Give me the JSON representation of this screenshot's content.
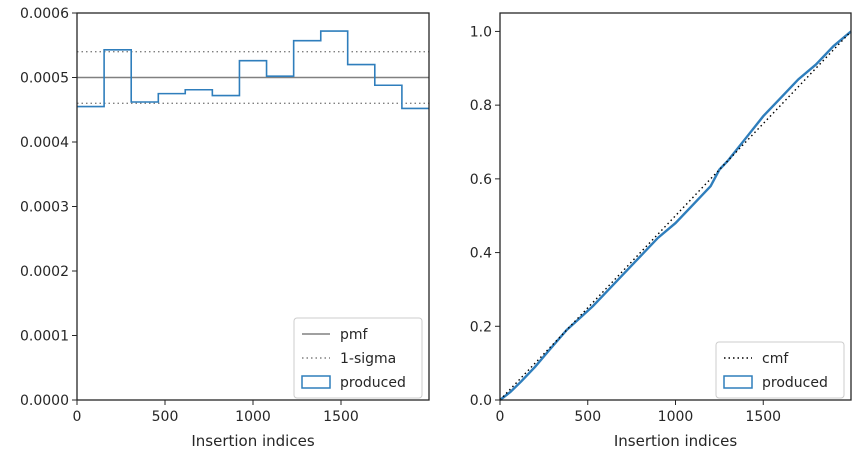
{
  "colors": {
    "histogram": "#2f7ebc",
    "pmf_line": "#808080",
    "sigma_line": "#808080",
    "cmf_line": "#000000",
    "axis": "#262626"
  },
  "chart_data": [
    {
      "type": "line",
      "xlabel": "Insertion indices",
      "xlim": [
        0,
        2000
      ],
      "ylim": [
        0,
        0.0006
      ],
      "x_ticks": [
        0,
        500,
        1000,
        1500
      ],
      "x_tick_labels": [
        "0",
        "500",
        "1000",
        "1500"
      ],
      "y_ticks": [
        0,
        0.0001,
        0.0002,
        0.0003,
        0.0004,
        0.0005,
        0.0006
      ],
      "y_tick_labels": [
        "0.0000",
        "0.0001",
        "0.0002",
        "0.0003",
        "0.0004",
        "0.0005",
        "0.0006"
      ],
      "legend_position": "lower-right",
      "reference_lines": [
        {
          "name": "pmf",
          "y": 0.0005,
          "style": "solid"
        },
        {
          "name": "1-sigma",
          "y": 0.00054,
          "style": "dotted"
        },
        {
          "name": "1-sigma",
          "y": 0.00046,
          "style": "dotted"
        }
      ],
      "histogram": {
        "name": "produced",
        "bin_edges": [
          0,
          154,
          308,
          462,
          615,
          769,
          923,
          1077,
          1231,
          1385,
          1538,
          1692,
          1846,
          2000
        ],
        "values": [
          0.000455,
          0.000543,
          0.000462,
          0.000475,
          0.000481,
          0.000472,
          0.000526,
          0.000502,
          0.000557,
          0.000572,
          0.00052,
          0.000488,
          0.000452
        ]
      },
      "legend": [
        {
          "label": "pmf",
          "kind": "solid"
        },
        {
          "label": "1-sigma",
          "kind": "dotted"
        },
        {
          "label": "produced",
          "kind": "box"
        }
      ]
    },
    {
      "type": "line",
      "xlabel": "Insertion indices",
      "xlim": [
        0,
        2000
      ],
      "ylim": [
        0,
        1.05
      ],
      "x_ticks": [
        0,
        500,
        1000,
        1500
      ],
      "x_tick_labels": [
        "0",
        "500",
        "1000",
        "1500"
      ],
      "y_ticks": [
        0,
        0.2,
        0.4,
        0.6,
        0.8,
        1.0
      ],
      "y_tick_labels": [
        "0.0",
        "0.2",
        "0.4",
        "0.6",
        "0.8",
        "1.0"
      ],
      "legend_position": "lower-right",
      "cmf": {
        "name": "cmf",
        "x": [
          0,
          2000
        ],
        "y": [
          0,
          1.0
        ]
      },
      "produced": {
        "name": "produced",
        "x": [
          0,
          60,
          120,
          200,
          280,
          380,
          450,
          530,
          620,
          700,
          800,
          900,
          1000,
          1100,
          1200,
          1250,
          1300,
          1400,
          1500,
          1600,
          1700,
          1800,
          1900,
          2000
        ],
        "y": [
          0,
          0.022,
          0.05,
          0.09,
          0.135,
          0.19,
          0.22,
          0.255,
          0.3,
          0.34,
          0.39,
          0.44,
          0.48,
          0.53,
          0.58,
          0.625,
          0.65,
          0.71,
          0.77,
          0.82,
          0.87,
          0.91,
          0.96,
          1.0
        ]
      },
      "legend": [
        {
          "label": "cmf",
          "kind": "dotted"
        },
        {
          "label": "produced",
          "kind": "box"
        }
      ]
    }
  ]
}
